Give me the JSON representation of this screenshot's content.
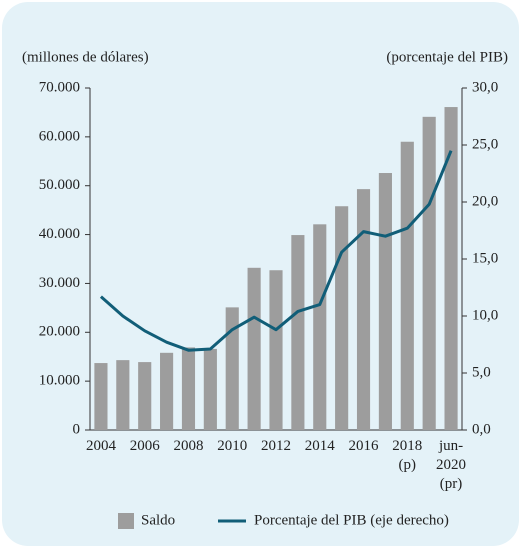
{
  "chart_data": {
    "type": "bar",
    "y_axis_label": "(millones de dólares)",
    "y2_axis_label": "(porcentaje del PIB)",
    "categories": [
      "2004",
      null,
      "2006",
      null,
      "2008",
      null,
      "2010",
      null,
      "2012",
      null,
      "2014",
      null,
      "2016",
      null,
      "2018 (p)",
      null,
      "jun-2020 (pr)"
    ],
    "series": [
      {
        "name": "Saldo",
        "type": "bar",
        "color": "#9d9d9d",
        "values": [
          13700,
          14300,
          13900,
          15800,
          16900,
          16600,
          25100,
          33200,
          32700,
          39900,
          42100,
          45800,
          49300,
          52600,
          59000,
          64100,
          66100
        ]
      },
      {
        "name": "Porcentaje del PIB (eje derecho)",
        "type": "line",
        "axis": "y2",
        "color": "#115e78",
        "values": [
          11.7,
          10.0,
          8.7,
          7.7,
          7.0,
          7.1,
          8.8,
          9.9,
          8.8,
          10.4,
          11.0,
          15.6,
          17.4,
          17.0,
          17.7,
          19.8,
          24.5
        ]
      }
    ],
    "ylim": [
      0,
      70000
    ],
    "yticks": [
      0,
      {
        "value": 10000,
        "label": "10.000"
      },
      {
        "value": 20000,
        "label": "20.000"
      },
      {
        "value": 30000,
        "label": "30.000"
      },
      {
        "value": 40000,
        "label": "40.000"
      },
      {
        "value": 50000,
        "label": "50.000"
      },
      {
        "value": 60000,
        "label": "60.000"
      },
      {
        "value": 70000,
        "label": "70.000"
      }
    ],
    "y2lim": [
      0,
      30
    ],
    "y2ticks": [
      {
        "value": 0,
        "label": "0,0"
      },
      {
        "value": 5,
        "label": "5,0"
      },
      {
        "value": 10,
        "label": "10,0"
      },
      {
        "value": 15,
        "label": "15,0"
      },
      {
        "value": 20,
        "label": "20,0"
      },
      {
        "value": 25,
        "label": "25,0"
      },
      {
        "value": 30,
        "label": "30,0"
      }
    ],
    "legend": "bottom"
  }
}
